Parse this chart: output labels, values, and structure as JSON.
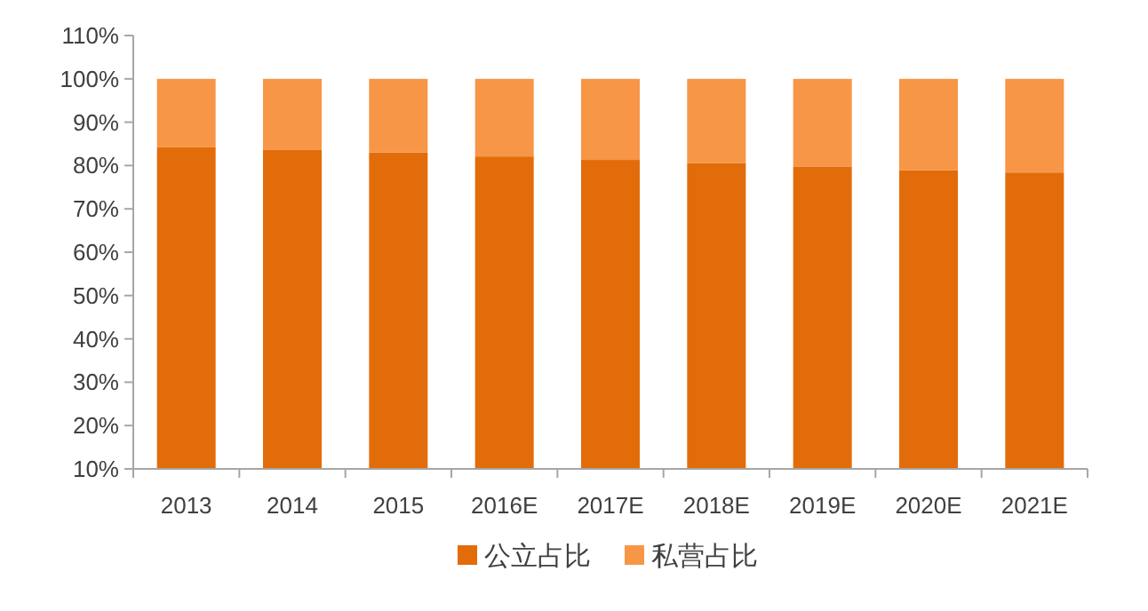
{
  "chart_data": {
    "type": "bar",
    "stacked": true,
    "legend": "bottom",
    "categories": [
      "2013",
      "2014",
      "2015",
      "2016E",
      "2017E",
      "2018E",
      "2019E",
      "2020E",
      "2021E"
    ],
    "series": [
      {
        "name": "公立占比",
        "color": "#e36c0a",
        "values": [
          84.2,
          83.7,
          83.0,
          82.1,
          81.3,
          80.6,
          79.8,
          78.9,
          78.4
        ]
      },
      {
        "name": "私营占比",
        "color": "#f79646",
        "values": [
          15.8,
          16.3,
          17.0,
          17.9,
          18.7,
          19.4,
          20.2,
          21.1,
          21.6
        ]
      }
    ],
    "ylim": [
      10,
      110
    ],
    "yticks": [
      {
        "value": 10,
        "label": "10%"
      },
      {
        "value": 20,
        "label": "20%"
      },
      {
        "value": 30,
        "label": "30%"
      },
      {
        "value": 40,
        "label": "40%"
      },
      {
        "value": 50,
        "label": "50%"
      },
      {
        "value": 60,
        "label": "60%"
      },
      {
        "value": 70,
        "label": "70%"
      },
      {
        "value": 80,
        "label": "80%"
      },
      {
        "value": 90,
        "label": "90%"
      },
      {
        "value": 100,
        "label": "100%"
      },
      {
        "value": 110,
        "label": "110%"
      }
    ]
  }
}
